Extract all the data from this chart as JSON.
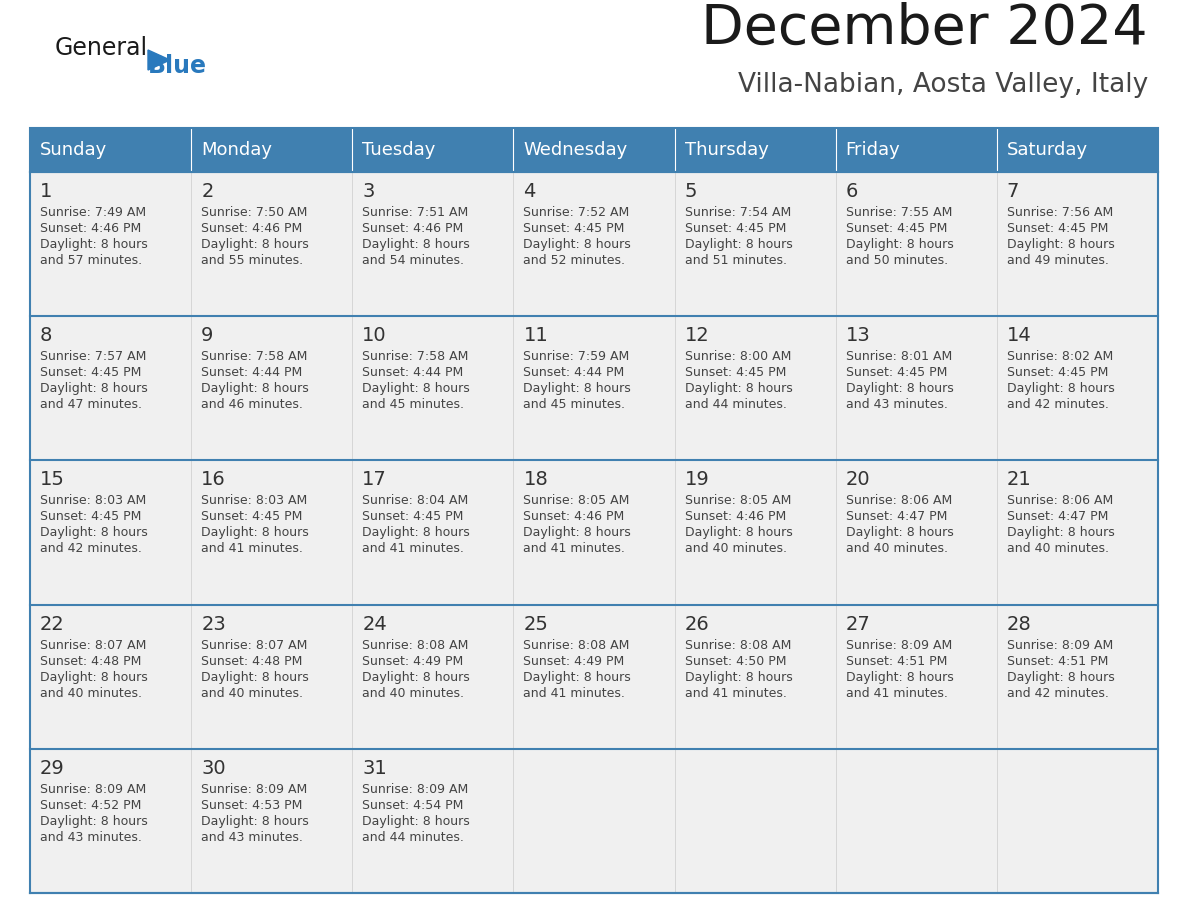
{
  "title": "December 2024",
  "subtitle": "Villa-Nabian, Aosta Valley, Italy",
  "days_of_week": [
    "Sunday",
    "Monday",
    "Tuesday",
    "Wednesday",
    "Thursday",
    "Friday",
    "Saturday"
  ],
  "header_bg_color": "#4080B0",
  "header_text_color": "#FFFFFF",
  "cell_bg_color": "#F0F0F0",
  "cell_bg_empty": "#FFFFFF",
  "row_border_color": "#4080B0",
  "col_border_color": "#BBBBBB",
  "day_num_color": "#333333",
  "text_color": "#444444",
  "title_color": "#1a1a1a",
  "subtitle_color": "#444444",
  "logo_general_color": "#1a1a1a",
  "logo_blue_color": "#2979BD",
  "logo_triangle_color": "#2979BD",
  "calendar_data": [
    [
      {
        "day": 1,
        "sunrise": "7:49 AM",
        "sunset": "4:46 PM",
        "daylight_mins": "57 minutes."
      },
      {
        "day": 2,
        "sunrise": "7:50 AM",
        "sunset": "4:46 PM",
        "daylight_mins": "55 minutes."
      },
      {
        "day": 3,
        "sunrise": "7:51 AM",
        "sunset": "4:46 PM",
        "daylight_mins": "54 minutes."
      },
      {
        "day": 4,
        "sunrise": "7:52 AM",
        "sunset": "4:45 PM",
        "daylight_mins": "52 minutes."
      },
      {
        "day": 5,
        "sunrise": "7:54 AM",
        "sunset": "4:45 PM",
        "daylight_mins": "51 minutes."
      },
      {
        "day": 6,
        "sunrise": "7:55 AM",
        "sunset": "4:45 PM",
        "daylight_mins": "50 minutes."
      },
      {
        "day": 7,
        "sunrise": "7:56 AM",
        "sunset": "4:45 PM",
        "daylight_mins": "49 minutes."
      }
    ],
    [
      {
        "day": 8,
        "sunrise": "7:57 AM",
        "sunset": "4:45 PM",
        "daylight_mins": "47 minutes."
      },
      {
        "day": 9,
        "sunrise": "7:58 AM",
        "sunset": "4:44 PM",
        "daylight_mins": "46 minutes."
      },
      {
        "day": 10,
        "sunrise": "7:58 AM",
        "sunset": "4:44 PM",
        "daylight_mins": "45 minutes."
      },
      {
        "day": 11,
        "sunrise": "7:59 AM",
        "sunset": "4:44 PM",
        "daylight_mins": "45 minutes."
      },
      {
        "day": 12,
        "sunrise": "8:00 AM",
        "sunset": "4:45 PM",
        "daylight_mins": "44 minutes."
      },
      {
        "day": 13,
        "sunrise": "8:01 AM",
        "sunset": "4:45 PM",
        "daylight_mins": "43 minutes."
      },
      {
        "day": 14,
        "sunrise": "8:02 AM",
        "sunset": "4:45 PM",
        "daylight_mins": "42 minutes."
      }
    ],
    [
      {
        "day": 15,
        "sunrise": "8:03 AM",
        "sunset": "4:45 PM",
        "daylight_mins": "42 minutes."
      },
      {
        "day": 16,
        "sunrise": "8:03 AM",
        "sunset": "4:45 PM",
        "daylight_mins": "41 minutes."
      },
      {
        "day": 17,
        "sunrise": "8:04 AM",
        "sunset": "4:45 PM",
        "daylight_mins": "41 minutes."
      },
      {
        "day": 18,
        "sunrise": "8:05 AM",
        "sunset": "4:46 PM",
        "daylight_mins": "41 minutes."
      },
      {
        "day": 19,
        "sunrise": "8:05 AM",
        "sunset": "4:46 PM",
        "daylight_mins": "40 minutes."
      },
      {
        "day": 20,
        "sunrise": "8:06 AM",
        "sunset": "4:47 PM",
        "daylight_mins": "40 minutes."
      },
      {
        "day": 21,
        "sunrise": "8:06 AM",
        "sunset": "4:47 PM",
        "daylight_mins": "40 minutes."
      }
    ],
    [
      {
        "day": 22,
        "sunrise": "8:07 AM",
        "sunset": "4:48 PM",
        "daylight_mins": "40 minutes."
      },
      {
        "day": 23,
        "sunrise": "8:07 AM",
        "sunset": "4:48 PM",
        "daylight_mins": "40 minutes."
      },
      {
        "day": 24,
        "sunrise": "8:08 AM",
        "sunset": "4:49 PM",
        "daylight_mins": "40 minutes."
      },
      {
        "day": 25,
        "sunrise": "8:08 AM",
        "sunset": "4:49 PM",
        "daylight_mins": "41 minutes."
      },
      {
        "day": 26,
        "sunrise": "8:08 AM",
        "sunset": "4:50 PM",
        "daylight_mins": "41 minutes."
      },
      {
        "day": 27,
        "sunrise": "8:09 AM",
        "sunset": "4:51 PM",
        "daylight_mins": "41 minutes."
      },
      {
        "day": 28,
        "sunrise": "8:09 AM",
        "sunset": "4:51 PM",
        "daylight_mins": "42 minutes."
      }
    ],
    [
      {
        "day": 29,
        "sunrise": "8:09 AM",
        "sunset": "4:52 PM",
        "daylight_mins": "43 minutes."
      },
      {
        "day": 30,
        "sunrise": "8:09 AM",
        "sunset": "4:53 PM",
        "daylight_mins": "43 minutes."
      },
      {
        "day": 31,
        "sunrise": "8:09 AM",
        "sunset": "4:54 PM",
        "daylight_mins": "44 minutes."
      },
      null,
      null,
      null,
      null
    ]
  ]
}
